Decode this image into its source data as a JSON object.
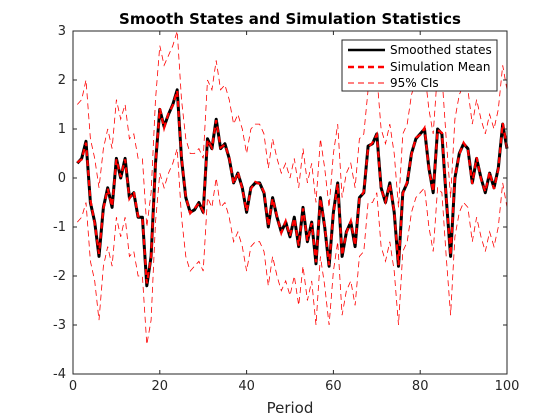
{
  "chart_data": {
    "type": "line",
    "title": "Smooth States and Simulation Statistics",
    "xlabel": "Period",
    "ylabel": "",
    "xlim": [
      0,
      100
    ],
    "ylim": [
      -4,
      3
    ],
    "xticks": [
      0,
      20,
      40,
      60,
      80,
      100
    ],
    "yticks": [
      -4,
      -3,
      -2,
      -1,
      0,
      1,
      2,
      3
    ],
    "grid": false,
    "legend_position": "top-right",
    "x": [
      1,
      2,
      3,
      4,
      5,
      6,
      7,
      8,
      9,
      10,
      11,
      12,
      13,
      14,
      15,
      16,
      17,
      18,
      19,
      20,
      21,
      22,
      23,
      24,
      25,
      26,
      27,
      28,
      29,
      30,
      31,
      32,
      33,
      34,
      35,
      36,
      37,
      38,
      39,
      40,
      41,
      42,
      43,
      44,
      45,
      46,
      47,
      48,
      49,
      50,
      51,
      52,
      53,
      54,
      55,
      56,
      57,
      58,
      59,
      60,
      61,
      62,
      63,
      64,
      65,
      66,
      67,
      68,
      69,
      70,
      71,
      72,
      73,
      74,
      75,
      76,
      77,
      78,
      79,
      80,
      81,
      82,
      83,
      84,
      85,
      86,
      87,
      88,
      89,
      90,
      91,
      92,
      93,
      94,
      95,
      96,
      97,
      98,
      99,
      100
    ],
    "series": [
      {
        "name": "Smoothed states",
        "color": "#000000",
        "style": "solid",
        "values": [
          0.3,
          0.4,
          0.75,
          -0.5,
          -0.9,
          -1.6,
          -0.6,
          -0.2,
          -0.6,
          0.4,
          0.0,
          0.4,
          -0.4,
          -0.3,
          -0.8,
          -0.8,
          -2.2,
          -1.6,
          0.3,
          1.4,
          1.05,
          1.3,
          1.5,
          1.8,
          0.4,
          -0.4,
          -0.7,
          -0.65,
          -0.5,
          -0.7,
          0.8,
          0.6,
          1.2,
          0.6,
          0.7,
          0.4,
          -0.1,
          0.1,
          -0.2,
          -0.7,
          -0.2,
          -0.1,
          -0.1,
          -0.3,
          -1.0,
          -0.4,
          -0.8,
          -1.1,
          -0.9,
          -1.2,
          -0.8,
          -1.4,
          -0.6,
          -1.3,
          -0.9,
          -1.75,
          -0.4,
          -1.0,
          -1.8,
          -0.7,
          -0.1,
          -1.6,
          -1.1,
          -0.9,
          -1.4,
          -0.4,
          -0.3,
          0.65,
          0.7,
          0.9,
          -0.2,
          -0.5,
          -0.1,
          -0.7,
          -1.8,
          -0.3,
          -0.1,
          0.5,
          0.8,
          0.9,
          1.0,
          0.2,
          -0.3,
          1.0,
          0.9,
          -0.4,
          -1.6,
          0.0,
          0.5,
          0.7,
          0.6,
          -0.1,
          0.4,
          0.0,
          -0.3,
          0.1,
          -0.2,
          0.2,
          1.1,
          0.6
        ]
      },
      {
        "name": "Simulation Mean",
        "color": "#ff0000",
        "style": "dashed",
        "values": [
          0.32,
          0.38,
          0.72,
          -0.45,
          -0.92,
          -1.55,
          -0.62,
          -0.22,
          -0.58,
          0.38,
          0.02,
          0.38,
          -0.42,
          -0.28,
          -0.78,
          -0.82,
          -2.15,
          -1.62,
          0.28,
          1.42,
          1.02,
          1.32,
          1.48,
          1.78,
          0.42,
          -0.38,
          -0.72,
          -0.62,
          -0.52,
          -0.68,
          0.78,
          0.62,
          1.18,
          0.62,
          0.68,
          0.42,
          -0.12,
          0.12,
          -0.22,
          -0.68,
          -0.22,
          -0.08,
          -0.12,
          -0.28,
          -0.98,
          -0.42,
          -0.78,
          -1.12,
          -0.88,
          -1.18,
          -0.82,
          -1.38,
          -0.62,
          -1.28,
          -0.92,
          -1.72,
          -0.42,
          -0.98,
          -1.78,
          -0.72,
          -0.12,
          -1.58,
          -1.12,
          -0.88,
          -1.38,
          -0.42,
          -0.28,
          0.62,
          0.72,
          0.88,
          -0.22,
          -0.48,
          -0.12,
          -0.68,
          -1.78,
          -0.32,
          -0.08,
          0.48,
          0.82,
          0.88,
          1.02,
          0.18,
          -0.28,
          0.98,
          0.92,
          -0.38,
          -1.58,
          0.02,
          0.48,
          0.72,
          0.58,
          -0.12,
          0.42,
          -0.02,
          -0.28,
          0.12,
          -0.22,
          0.18,
          1.12,
          0.62
        ]
      },
      {
        "name": "95% CIs",
        "color": "#ff0000",
        "style": "dashed-thin",
        "upper": [
          1.5,
          1.6,
          2.0,
          0.8,
          0.4,
          -0.2,
          0.6,
          1.0,
          0.6,
          1.6,
          1.2,
          1.5,
          0.8,
          0.9,
          0.4,
          0.4,
          -1.0,
          -0.3,
          1.6,
          2.7,
          2.3,
          2.5,
          2.7,
          3.0,
          1.6,
          0.8,
          0.5,
          0.5,
          0.6,
          0.4,
          2.0,
          1.8,
          2.4,
          1.8,
          1.9,
          1.6,
          1.1,
          1.3,
          1.0,
          0.5,
          1.0,
          1.1,
          1.1,
          0.9,
          0.2,
          0.8,
          0.4,
          0.1,
          0.3,
          0.0,
          0.4,
          -0.2,
          0.6,
          -0.1,
          0.3,
          -0.5,
          0.8,
          0.2,
          -0.6,
          0.5,
          1.1,
          -0.4,
          0.1,
          0.3,
          -0.2,
          0.8,
          0.9,
          1.8,
          1.9,
          2.1,
          1.0,
          0.7,
          1.1,
          0.5,
          -0.6,
          0.9,
          1.1,
          1.7,
          2.0,
          2.1,
          2.2,
          1.4,
          0.9,
          2.2,
          2.1,
          0.8,
          -0.4,
          1.2,
          1.7,
          1.9,
          1.8,
          1.1,
          1.6,
          1.2,
          0.9,
          1.3,
          1.0,
          1.4,
          2.3,
          1.8
        ],
        "lower": [
          -0.9,
          -0.8,
          -0.5,
          -1.7,
          -2.1,
          -2.9,
          -1.8,
          -1.4,
          -1.8,
          -0.8,
          -1.2,
          -0.8,
          -1.6,
          -1.5,
          -2.0,
          -2.0,
          -3.4,
          -2.9,
          -0.9,
          0.1,
          -0.2,
          0.1,
          0.3,
          0.6,
          -0.8,
          -1.6,
          -1.9,
          -1.8,
          -1.7,
          -1.9,
          -0.4,
          -0.6,
          0.0,
          -0.6,
          -0.5,
          -0.8,
          -1.3,
          -1.1,
          -1.4,
          -1.9,
          -1.4,
          -1.3,
          -1.3,
          -1.5,
          -2.2,
          -1.6,
          -2.0,
          -2.3,
          -2.1,
          -2.4,
          -2.0,
          -2.6,
          -1.8,
          -2.5,
          -2.1,
          -3.0,
          -1.6,
          -2.2,
          -3.0,
          -1.9,
          -1.3,
          -2.8,
          -2.3,
          -2.1,
          -2.6,
          -1.6,
          -1.5,
          -0.5,
          -0.5,
          -0.3,
          -1.4,
          -1.7,
          -1.3,
          -1.9,
          -3.0,
          -1.5,
          -1.3,
          -0.7,
          -0.4,
          -0.3,
          -0.2,
          -1.0,
          -1.5,
          -0.2,
          -0.3,
          -1.6,
          -2.8,
          -1.2,
          -0.7,
          -0.5,
          -0.6,
          -1.3,
          -0.8,
          -1.2,
          -1.5,
          -1.1,
          -1.4,
          -1.0,
          -0.1,
          -0.6
        ]
      }
    ]
  }
}
